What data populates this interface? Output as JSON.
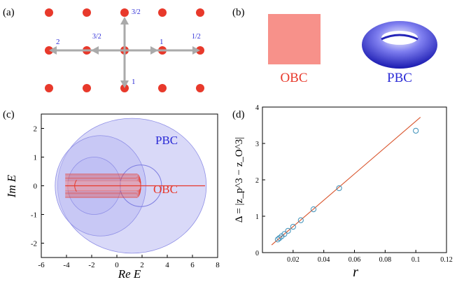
{
  "panels": {
    "a": {
      "tag": "(a)",
      "hopping": {
        "up": "3/2",
        "down": "1",
        "left": "2",
        "left_inner": "3/2",
        "right": "1/2",
        "right_inner": "1"
      }
    },
    "b": {
      "tag": "(b)",
      "obc_label": "OBC",
      "pbc_label": "PBC"
    },
    "c": {
      "tag": "(c)",
      "pbc_label": "PBC",
      "obc_label": "OBC",
      "xlabel": "Re E",
      "ylabel": "Im E",
      "xticks": [
        "-6",
        "-4",
        "-2",
        "0",
        "2",
        "4",
        "6",
        "8"
      ],
      "yticks": [
        "2",
        "1",
        "0",
        "-1",
        "-2"
      ]
    },
    "d": {
      "tag": "(d)",
      "xlabel": "r",
      "ylabel": "Δ = |z_p^3 − z_O^3|",
      "xticks": [
        "0",
        "0.02",
        "0.04",
        "0.06",
        "0.08",
        "0.1",
        "0.12"
      ],
      "yticks": [
        "0",
        "1",
        "2",
        "3",
        "4"
      ]
    }
  },
  "colors": {
    "red": "#e8392b",
    "blue": "#2b2bd6",
    "pbc_fill": "#b9b9f2",
    "obc_fill": "#f08a8a",
    "square": "#f7918a",
    "line_d": "#d9542c",
    "marker_d": "#3b8fb8"
  },
  "chart_data": [
    {
      "type": "scatter",
      "panel": "d",
      "xlabel": "r",
      "ylabel": "Δ = |z_p^3 − z_O^3|",
      "xlim": [
        0,
        0.12
      ],
      "ylim": [
        0,
        4
      ],
      "points": [
        {
          "x": 0.01,
          "y": 0.36
        },
        {
          "x": 0.0111,
          "y": 0.4
        },
        {
          "x": 0.0125,
          "y": 0.45
        },
        {
          "x": 0.0143,
          "y": 0.51
        },
        {
          "x": 0.0167,
          "y": 0.6
        },
        {
          "x": 0.02,
          "y": 0.71
        },
        {
          "x": 0.025,
          "y": 0.89
        },
        {
          "x": 0.0333,
          "y": 1.19
        },
        {
          "x": 0.05,
          "y": 1.77
        },
        {
          "x": 0.1,
          "y": 3.35
        }
      ],
      "fit_line": [
        {
          "x": 0.006,
          "y": 0.21
        },
        {
          "x": 0.103,
          "y": 3.72
        }
      ]
    },
    {
      "type": "area",
      "panel": "c",
      "xlabel": "Re E",
      "ylabel": "Im E",
      "xlim": [
        -6,
        8
      ],
      "ylim": [
        -2.5,
        2.5
      ],
      "series": [
        {
          "name": "PBC"
        },
        {
          "name": "OBC"
        }
      ],
      "obc_line": [
        {
          "x": -4.1,
          "y": 0
        },
        {
          "x": 7,
          "y": 0
        }
      ]
    }
  ]
}
